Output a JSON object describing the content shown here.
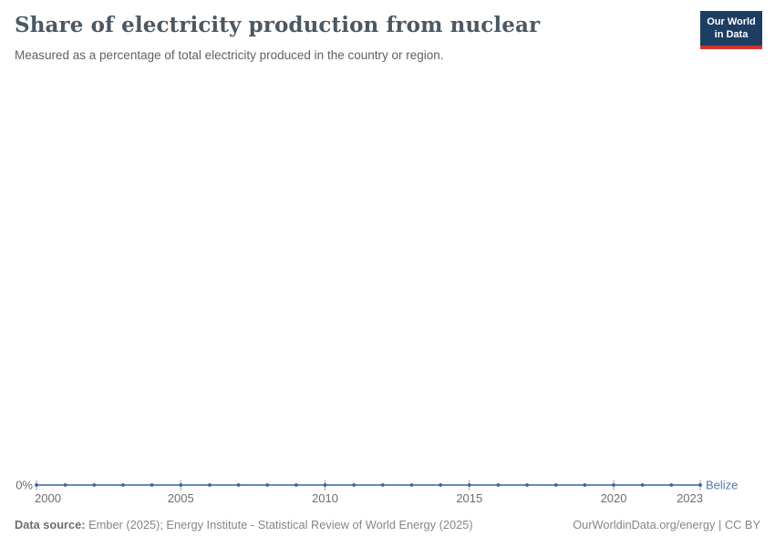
{
  "header": {
    "title": "Share of electricity production from nuclear",
    "subtitle": "Measured as a percentage of total electricity produced in the country or region.",
    "logo": {
      "line1": "Our World",
      "line2": "in Data"
    }
  },
  "chart_data": {
    "type": "line",
    "title": "Share of electricity production from nuclear",
    "xlabel": "",
    "ylabel": "",
    "x": [
      2000,
      2001,
      2002,
      2003,
      2004,
      2005,
      2006,
      2007,
      2008,
      2009,
      2010,
      2011,
      2012,
      2013,
      2014,
      2015,
      2016,
      2017,
      2018,
      2019,
      2020,
      2021,
      2022,
      2023
    ],
    "series": [
      {
        "name": "Belize",
        "values": [
          0,
          0,
          0,
          0,
          0,
          0,
          0,
          0,
          0,
          0,
          0,
          0,
          0,
          0,
          0,
          0,
          0,
          0,
          0,
          0,
          0,
          0,
          0,
          0
        ],
        "unit": "%"
      }
    ],
    "x_tick_labels": [
      "2000",
      "2005",
      "2010",
      "2015",
      "2020",
      "2023"
    ],
    "x_tick_years": [
      2000,
      2005,
      2010,
      2015,
      2020,
      2023
    ],
    "y_tick_labels": [
      "0%"
    ],
    "xlim": [
      2000,
      2023
    ],
    "ylim": [
      0,
      100
    ],
    "grid": false,
    "legend_position": "end-of-line-label"
  },
  "axis": {
    "y_zero_label": "0%"
  },
  "entity_label": "Belize",
  "footer": {
    "datasource_label": "Data source:",
    "datasource_text": " Ember (2025); Energy Institute - Statistical Review of World Energy (2025)",
    "right_text": "OurWorldinData.org/energy | CC BY"
  },
  "colors": {
    "line": "#5878ad",
    "dot": "#3f639c",
    "tick": "#8fa3c4",
    "axis_text": "#6b6b6b",
    "entity_label": "#5878ad",
    "logo_bg": "#1d3d63",
    "logo_red": "#d2352c"
  }
}
